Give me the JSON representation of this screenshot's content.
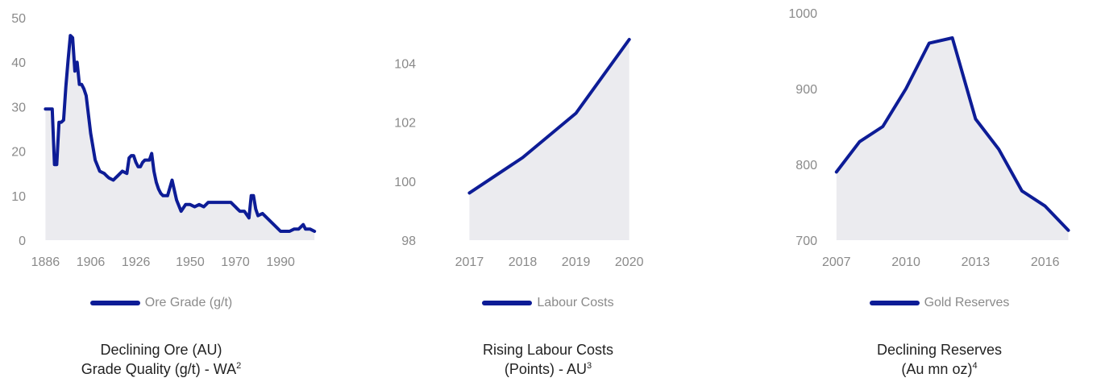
{
  "colors": {
    "line": "#0d1c96",
    "fill": "#ebebef",
    "tick": "#8a8a8a",
    "caption": "#222222"
  },
  "chart_data": [
    {
      "type": "area",
      "series": [
        {
          "name": "Ore Grade (g/t)",
          "x": [
            1886,
            1888,
            1889,
            1890,
            1891,
            1892,
            1893,
            1894,
            1895,
            1896,
            1897,
            1898,
            1899,
            1900,
            1901,
            1902,
            1903,
            1904,
            1906,
            1908,
            1910,
            1912,
            1913,
            1914,
            1916,
            1917,
            1918,
            1919,
            1920,
            1922,
            1923,
            1924,
            1925,
            1926,
            1927,
            1928,
            1929,
            1930,
            1932,
            1933,
            1934,
            1935,
            1936,
            1937,
            1938,
            1940,
            1942,
            1944,
            1946,
            1948,
            1950,
            1952,
            1954,
            1956,
            1958,
            1960,
            1962,
            1964,
            1966,
            1968,
            1970,
            1971,
            1972,
            1974,
            1976,
            1977,
            1978,
            1979,
            1980,
            1982,
            1984,
            1986,
            1988,
            1990,
            1992,
            1994,
            1996,
            1998,
            2000,
            2001,
            2002,
            2003,
            2005
          ],
          "values": [
            29.5,
            29.5,
            29.5,
            17,
            17,
            26.5,
            26.5,
            27,
            34.5,
            40.5,
            46,
            45.5,
            38,
            40,
            35,
            35,
            34,
            32.5,
            24,
            18,
            15.5,
            15,
            14.5,
            14,
            13.5,
            14,
            14.5,
            15,
            15.5,
            15,
            18.5,
            19,
            19,
            17.5,
            16.5,
            16.5,
            17.5,
            18,
            18,
            19.5,
            15.5,
            13,
            11.5,
            10.5,
            10,
            10,
            13.5,
            9,
            6.5,
            8,
            8,
            7.5,
            8,
            7.5,
            8.5,
            8.5,
            8.5,
            8.5,
            8.5,
            8.5,
            7.5,
            7,
            6.5,
            6.5,
            5,
            10,
            10,
            7,
            5.5,
            6,
            5,
            4,
            3,
            2,
            2,
            2,
            2.5,
            2.5,
            3.5,
            2.5,
            2.5,
            2.5,
            2
          ]
        }
      ],
      "ylim": [
        0,
        50
      ],
      "xlim": [
        1883,
        2006
      ],
      "yticks": [
        "0",
        "10",
        "20",
        "30",
        "40",
        "50"
      ],
      "xticks": [
        1886,
        1906,
        1926,
        1950,
        1970,
        1990
      ],
      "legend_label": "Ore Grade (g/t)",
      "caption_line1": "Declining Ore (AU)",
      "caption_line2": "Grade Quality (g/t) - WA",
      "caption_sup": "2"
    },
    {
      "type": "area",
      "series": [
        {
          "name": "Labour Costs",
          "x": [
            2017,
            2018,
            2019,
            2020
          ],
          "values": [
            99.6,
            100.8,
            102.3,
            104.8
          ]
        }
      ],
      "ylim": [
        98,
        105.7
      ],
      "xlim": [
        2016.6,
        2021.2
      ],
      "yticks": [
        "98",
        "100",
        "102",
        "104"
      ],
      "xticks": [
        2017,
        2018,
        2019,
        2020
      ],
      "legend_label": "Labour Costs",
      "caption_line1": "Rising Labour Costs",
      "caption_line2": "(Points) - AU",
      "caption_sup": "3"
    },
    {
      "type": "area",
      "series": [
        {
          "name": "Gold Reserves",
          "x": [
            2007,
            2008,
            2009,
            2010,
            2011,
            2012,
            2013,
            2014,
            2015,
            2016,
            2017
          ],
          "values": [
            790,
            830,
            850,
            900,
            960,
            967,
            860,
            820,
            765,
            745,
            713
          ]
        }
      ],
      "ylim": [
        700,
        1000
      ],
      "xlim": [
        2006.8,
        2018.2
      ],
      "yticks": [
        "700",
        "800",
        "900",
        "1000"
      ],
      "xticks": [
        2007,
        2010,
        2013,
        2016
      ],
      "legend_label": "Gold Reserves",
      "caption_line1": "Declining Reserves",
      "caption_line2": "(Au mn oz)",
      "caption_sup": "4"
    }
  ]
}
